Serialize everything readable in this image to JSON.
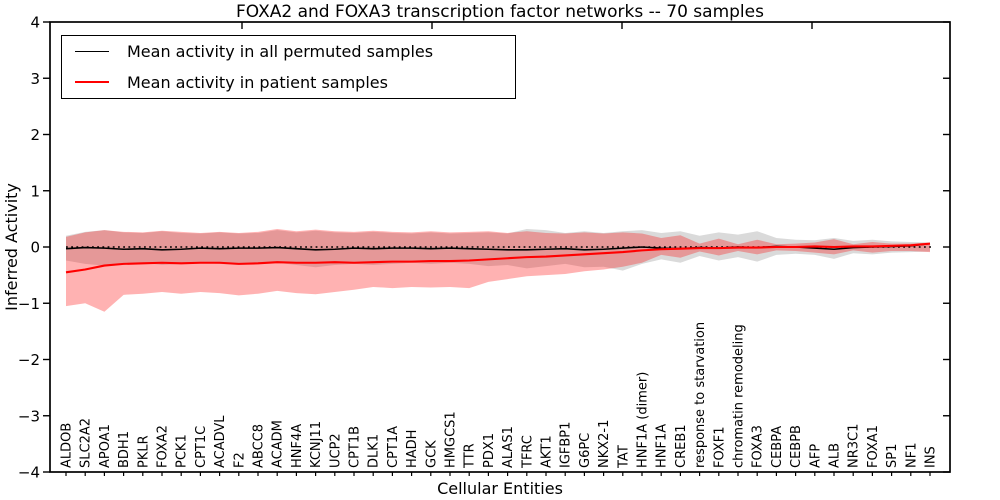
{
  "chart_data": {
    "type": "line",
    "title": "FOXA2 and FOXA3 transcription factor networks -- 70 samples",
    "xlabel": "Cellular Entities",
    "ylabel": "Inferred Activity",
    "ylim": [
      -4,
      4
    ],
    "yticks": [
      -4,
      -3,
      -2,
      -1,
      0,
      1,
      2,
      3,
      4
    ],
    "grid": false,
    "legend_position": "upper left",
    "zero_line": {
      "show": true,
      "style": "dotted",
      "color": "#000000"
    },
    "categories": [
      "ALDOB",
      "SLC2A2",
      "APOA1",
      "BDH1",
      "PKLR",
      "FOXA2",
      "PCK1",
      "CPT1C",
      "ACADVL",
      "F2",
      "ABCC8",
      "ACADM",
      "HNF4A",
      "KCNJ11",
      "UCP2",
      "CPT1B",
      "DLK1",
      "CPT1A",
      "HADH",
      "GCK",
      "HMGCS1",
      "TTR",
      "PDX1",
      "ALAS1",
      "TFRC",
      "AKT1",
      "IGFBP1",
      "G6PC",
      "NKX2-1",
      "TAT",
      "HNF1A (dimer)",
      "HNF1A",
      "CREB1",
      "response to starvation",
      "FOXF1",
      "chromatin remodeling",
      "FOXA3",
      "CEBPA",
      "CEBPB",
      "AFP",
      "ALB",
      "NR3C1",
      "FOXA1",
      "SP1",
      "NF1",
      "INS"
    ],
    "series": [
      {
        "name": "Mean activity in all permuted samples",
        "color": "#000000",
        "values": [
          -0.03,
          -0.01,
          -0.02,
          -0.04,
          -0.03,
          -0.05,
          -0.04,
          -0.02,
          -0.03,
          -0.02,
          -0.02,
          -0.01,
          -0.03,
          -0.05,
          -0.04,
          -0.02,
          -0.03,
          -0.02,
          -0.02,
          -0.03,
          -0.02,
          -0.03,
          -0.04,
          -0.05,
          -0.05,
          -0.04,
          -0.03,
          -0.05,
          -0.04,
          -0.02,
          0.0,
          -0.02,
          -0.03,
          -0.01,
          -0.02,
          0.0,
          -0.01,
          0.01,
          0.0,
          -0.02,
          -0.04,
          -0.01,
          0.0,
          0.01,
          0.02,
          0.06
        ]
      },
      {
        "name": "Mean activity in patient samples",
        "color": "#ff0000",
        "values": [
          -0.45,
          -0.4,
          -0.33,
          -0.3,
          -0.29,
          -0.28,
          -0.29,
          -0.28,
          -0.28,
          -0.3,
          -0.29,
          -0.27,
          -0.28,
          -0.28,
          -0.27,
          -0.28,
          -0.27,
          -0.26,
          -0.26,
          -0.25,
          -0.25,
          -0.24,
          -0.22,
          -0.2,
          -0.18,
          -0.17,
          -0.15,
          -0.13,
          -0.11,
          -0.09,
          -0.06,
          -0.04,
          -0.03,
          -0.02,
          -0.02,
          -0.01,
          -0.01,
          0.0,
          0.0,
          0.01,
          0.0,
          0.01,
          0.01,
          0.02,
          0.03,
          0.06
        ]
      }
    ],
    "bands": [
      {
        "name": "permuted samples range",
        "color": "#787878",
        "opacity": 0.27,
        "upper": [
          0.2,
          0.27,
          0.3,
          0.26,
          0.25,
          0.28,
          0.25,
          0.24,
          0.26,
          0.24,
          0.25,
          0.3,
          0.26,
          0.29,
          0.26,
          0.25,
          0.27,
          0.25,
          0.24,
          0.26,
          0.24,
          0.25,
          0.26,
          0.24,
          0.32,
          0.3,
          0.25,
          0.28,
          0.25,
          0.28,
          0.3,
          0.25,
          0.28,
          0.2,
          0.26,
          0.22,
          0.28,
          0.16,
          0.13,
          0.12,
          0.16,
          0.11,
          0.13,
          0.1,
          0.09,
          0.08
        ],
        "lower": [
          -0.24,
          -0.3,
          -0.33,
          -0.3,
          -0.28,
          -0.32,
          -0.3,
          -0.28,
          -0.3,
          -0.32,
          -0.3,
          -0.28,
          -0.32,
          -0.36,
          -0.32,
          -0.3,
          -0.32,
          -0.3,
          -0.28,
          -0.3,
          -0.28,
          -0.3,
          -0.34,
          -0.32,
          -0.38,
          -0.34,
          -0.3,
          -0.36,
          -0.35,
          -0.42,
          -0.3,
          -0.22,
          -0.28,
          -0.16,
          -0.24,
          -0.18,
          -0.26,
          -0.14,
          -0.12,
          -0.14,
          -0.21,
          -0.11,
          -0.13,
          -0.1,
          -0.09,
          -0.08
        ]
      },
      {
        "name": "patient samples range",
        "color": "#ff0000",
        "opacity": 0.3,
        "upper": [
          0.18,
          0.26,
          0.3,
          0.27,
          0.26,
          0.29,
          0.27,
          0.25,
          0.27,
          0.25,
          0.27,
          0.32,
          0.28,
          0.31,
          0.28,
          0.27,
          0.29,
          0.27,
          0.26,
          0.28,
          0.26,
          0.27,
          0.28,
          0.25,
          0.28,
          0.25,
          0.24,
          0.26,
          0.24,
          0.26,
          0.24,
          0.16,
          0.21,
          0.06,
          0.15,
          0.05,
          0.13,
          0.05,
          0.06,
          0.08,
          0.14,
          0.05,
          0.09,
          0.06,
          0.06,
          0.08
        ],
        "lower": [
          -1.05,
          -1.0,
          -1.15,
          -0.85,
          -0.83,
          -0.8,
          -0.83,
          -0.8,
          -0.82,
          -0.86,
          -0.83,
          -0.78,
          -0.82,
          -0.84,
          -0.8,
          -0.76,
          -0.71,
          -0.73,
          -0.71,
          -0.72,
          -0.71,
          -0.73,
          -0.62,
          -0.57,
          -0.52,
          -0.5,
          -0.48,
          -0.43,
          -0.4,
          -0.35,
          -0.28,
          -0.14,
          -0.19,
          -0.08,
          -0.15,
          -0.07,
          -0.13,
          -0.06,
          -0.07,
          -0.1,
          -0.13,
          -0.06,
          -0.1,
          -0.07,
          -0.07,
          -0.09
        ]
      }
    ]
  }
}
